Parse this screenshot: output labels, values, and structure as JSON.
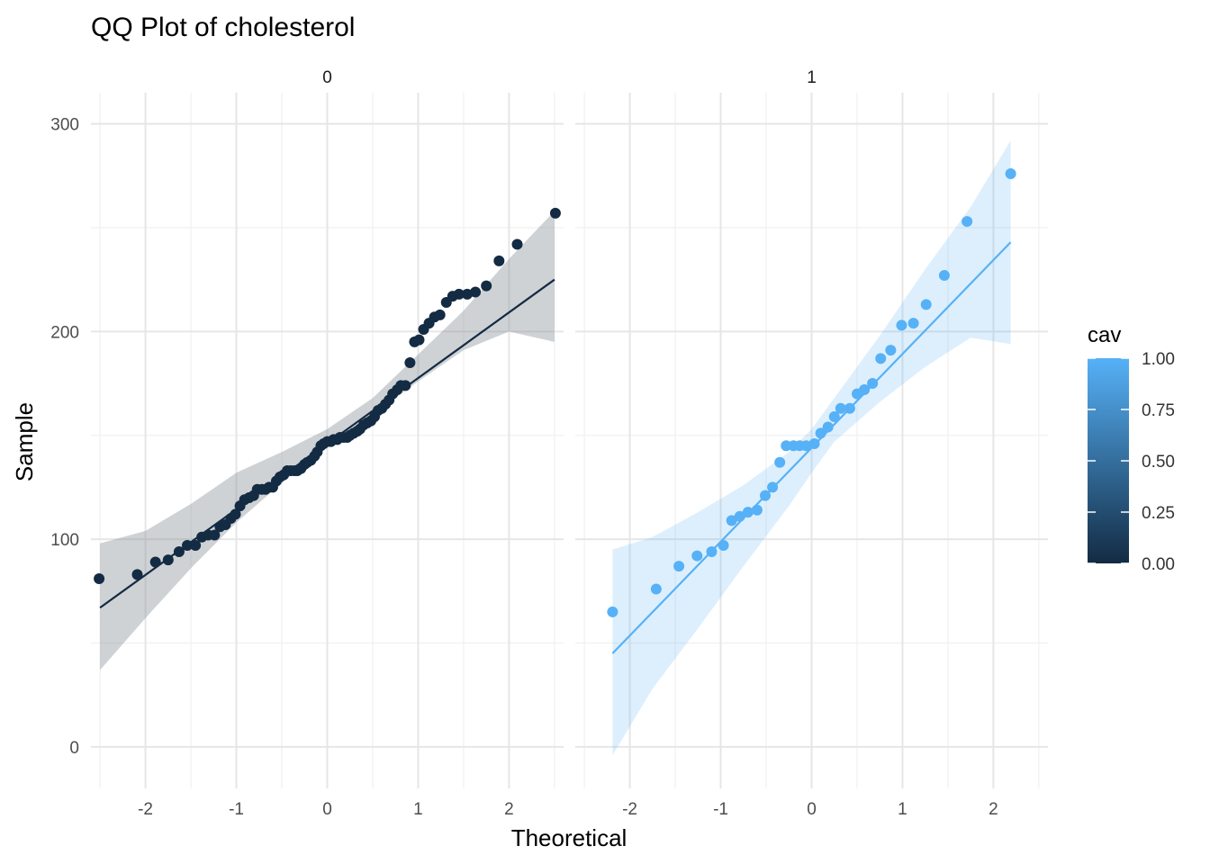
{
  "chart_data": {
    "type": "scatter",
    "title": "QQ Plot of cholesterol",
    "xlabel": "Theoretical",
    "ylabel": "Sample",
    "facet_labels": [
      "0",
      "1"
    ],
    "xlim": [
      -2.6,
      2.6
    ],
    "ylim": [
      -20,
      315
    ],
    "x_ticks": [
      -2,
      -1,
      0,
      1,
      2
    ],
    "x_tick_labels": [
      "-2",
      "-1",
      "0",
      "1",
      "2"
    ],
    "y_ticks": [
      0,
      100,
      200,
      300
    ],
    "y_tick_labels": [
      "0",
      "100",
      "200",
      "300"
    ],
    "grid": true,
    "legend": {
      "title": "cav",
      "position": "right",
      "ticks": [
        0,
        0.25,
        0.5,
        0.75,
        1
      ],
      "tick_labels": [
        "0.00",
        "0.25",
        "0.50",
        "0.75",
        "1.00"
      ],
      "low_color": "#132B43",
      "high_color": "#56B1F7"
    },
    "panels": [
      {
        "facet": "0",
        "color": "#132B43",
        "band_color": "#8c949c",
        "line": {
          "x": [
            -2.5,
            2.5
          ],
          "y": [
            67,
            225
          ]
        },
        "band": {
          "x": [
            -2.5,
            -2.0,
            -1.5,
            -1.0,
            -0.5,
            0.0,
            0.5,
            1.0,
            1.5,
            2.0,
            2.5
          ],
          "lower": [
            37,
            62,
            86,
            108,
            127,
            145,
            160,
            176,
            191,
            200,
            195
          ],
          "upper": [
            98,
            104,
            117,
            132,
            142,
            153,
            168,
            189,
            210,
            235,
            258
          ]
        },
        "points": [
          [
            -2.51,
            81
          ],
          [
            -2.09,
            83
          ],
          [
            -1.89,
            89
          ],
          [
            -1.75,
            90
          ],
          [
            -1.63,
            94
          ],
          [
            -1.54,
            97
          ],
          [
            -1.45,
            97
          ],
          [
            -1.38,
            101
          ],
          [
            -1.31,
            102
          ],
          [
            -1.24,
            102
          ],
          [
            -1.18,
            106
          ],
          [
            -1.12,
            107
          ],
          [
            -1.06,
            110
          ],
          [
            -1.01,
            112
          ],
          [
            -0.96,
            116
          ],
          [
            -0.91,
            119
          ],
          [
            -0.86,
            120
          ],
          [
            -0.81,
            121
          ],
          [
            -0.77,
            124
          ],
          [
            -0.72,
            124
          ],
          [
            -0.68,
            124
          ],
          [
            -0.64,
            125
          ],
          [
            -0.6,
            125
          ],
          [
            -0.56,
            128
          ],
          [
            -0.52,
            130
          ],
          [
            -0.48,
            131
          ],
          [
            -0.44,
            133
          ],
          [
            -0.4,
            133
          ],
          [
            -0.36,
            133
          ],
          [
            -0.33,
            133
          ],
          [
            -0.29,
            134
          ],
          [
            -0.25,
            136
          ],
          [
            -0.22,
            137
          ],
          [
            -0.18,
            138
          ],
          [
            -0.14,
            140
          ],
          [
            -0.11,
            142
          ],
          [
            -0.07,
            145
          ],
          [
            -0.04,
            146
          ],
          [
            0.0,
            147
          ],
          [
            0.04,
            147
          ],
          [
            0.07,
            148
          ],
          [
            0.11,
            148
          ],
          [
            0.14,
            149
          ],
          [
            0.18,
            149
          ],
          [
            0.22,
            149
          ],
          [
            0.25,
            150
          ],
          [
            0.29,
            151
          ],
          [
            0.33,
            152
          ],
          [
            0.36,
            153
          ],
          [
            0.4,
            155
          ],
          [
            0.44,
            156
          ],
          [
            0.48,
            157
          ],
          [
            0.52,
            159
          ],
          [
            0.56,
            162
          ],
          [
            0.6,
            163
          ],
          [
            0.64,
            165
          ],
          [
            0.68,
            167
          ],
          [
            0.72,
            170
          ],
          [
            0.77,
            172
          ],
          [
            0.81,
            174
          ],
          [
            0.86,
            174
          ],
          [
            0.91,
            185
          ],
          [
            0.96,
            195
          ],
          [
            1.01,
            196
          ],
          [
            1.06,
            201
          ],
          [
            1.12,
            204
          ],
          [
            1.18,
            207
          ],
          [
            1.24,
            208
          ],
          [
            1.31,
            214
          ],
          [
            1.38,
            217
          ],
          [
            1.45,
            218
          ],
          [
            1.54,
            218
          ],
          [
            1.63,
            219
          ],
          [
            1.75,
            222
          ],
          [
            1.89,
            234
          ],
          [
            2.09,
            242
          ],
          [
            2.51,
            257
          ]
        ]
      },
      {
        "facet": "1",
        "color": "#56B1F7",
        "band_color": "#56B1F7",
        "line": {
          "x": [
            -2.19,
            2.19
          ],
          "y": [
            45,
            243
          ]
        },
        "band": {
          "x": [
            -2.19,
            -1.75,
            -1.25,
            -0.75,
            -0.25,
            0.0,
            0.25,
            0.75,
            1.25,
            1.75,
            2.19
          ],
          "lower": [
            -4,
            28,
            57,
            87,
            116,
            132,
            147,
            166,
            183,
            197,
            194
          ],
          "upper": [
            95,
            101,
            113,
            126,
            142,
            153,
            168,
            198,
            230,
            260,
            292
          ]
        },
        "points": [
          [
            -2.19,
            65
          ],
          [
            -1.71,
            76
          ],
          [
            -1.46,
            87
          ],
          [
            -1.26,
            92
          ],
          [
            -1.1,
            94
          ],
          [
            -0.97,
            97
          ],
          [
            -0.88,
            109
          ],
          [
            -0.79,
            111
          ],
          [
            -0.7,
            113
          ],
          [
            -0.6,
            114
          ],
          [
            -0.51,
            121
          ],
          [
            -0.43,
            125
          ],
          [
            -0.35,
            137
          ],
          [
            -0.28,
            145
          ],
          [
            -0.2,
            145
          ],
          [
            -0.13,
            145
          ],
          [
            -0.06,
            145
          ],
          [
            0.03,
            146
          ],
          [
            0.1,
            151
          ],
          [
            0.18,
            154
          ],
          [
            0.25,
            159
          ],
          [
            0.32,
            163
          ],
          [
            0.42,
            163
          ],
          [
            0.5,
            170
          ],
          [
            0.58,
            172
          ],
          [
            0.67,
            175
          ],
          [
            0.76,
            187
          ],
          [
            0.87,
            191
          ],
          [
            0.99,
            203
          ],
          [
            1.12,
            204
          ],
          [
            1.26,
            213
          ],
          [
            1.46,
            227
          ],
          [
            1.71,
            253
          ],
          [
            2.19,
            276
          ]
        ]
      }
    ]
  }
}
